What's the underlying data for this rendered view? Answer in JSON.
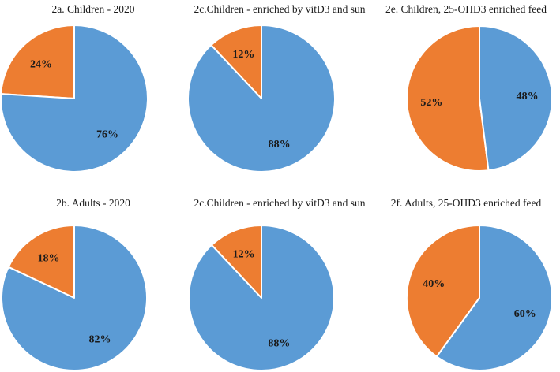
{
  "colors": {
    "majority": "#5B9BD5",
    "minority": "#ED7D31",
    "edge": "#ffffff"
  },
  "chart_data": [
    {
      "type": "pie",
      "title": "2a. Children - 2020",
      "slices": [
        {
          "label": "24%",
          "value": 24,
          "color": "#ED7D31"
        },
        {
          "label": "76%",
          "value": 76,
          "color": "#5B9BD5"
        }
      ]
    },
    {
      "type": "pie",
      "title": "2c.Children - enriched by vitD3 and sun",
      "slices": [
        {
          "label": "12%",
          "value": 12,
          "color": "#ED7D31"
        },
        {
          "label": "88%",
          "value": 88,
          "color": "#5B9BD5"
        }
      ]
    },
    {
      "type": "pie",
      "title": "2e. Children, 25-OHD3 enriched feed",
      "slices": [
        {
          "label": "52%",
          "value": 52,
          "color": "#ED7D31"
        },
        {
          "label": "48%",
          "value": 48,
          "color": "#5B9BD5"
        }
      ]
    },
    {
      "type": "pie",
      "title": "2b. Adults - 2020",
      "slices": [
        {
          "label": "18%",
          "value": 18,
          "color": "#ED7D31"
        },
        {
          "label": "82%",
          "value": 82,
          "color": "#5B9BD5"
        }
      ]
    },
    {
      "type": "pie",
      "title": "2c.Children - enriched by vitD3 and sun",
      "slices": [
        {
          "label": "12%",
          "value": 12,
          "color": "#ED7D31"
        },
        {
          "label": "88%",
          "value": 88,
          "color": "#5B9BD5"
        }
      ]
    },
    {
      "type": "pie",
      "title": "2f. Adults, 25-OHD3 enriched feed",
      "slices": [
        {
          "label": "40%",
          "value": 40,
          "color": "#ED7D31"
        },
        {
          "label": "60%",
          "value": 60,
          "color": "#5B9BD5"
        }
      ]
    }
  ]
}
